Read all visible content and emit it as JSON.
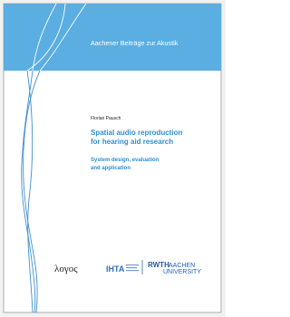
{
  "series_name": "Aachener Beiträge zur Akustik",
  "author": "Florian Pausch",
  "title_lines": [
    "Spatial audio reproduction",
    "for hearing aid research"
  ],
  "subtitle_lines": [
    "System design, evaluation",
    "and application"
  ],
  "publisher": "λογος",
  "logos": {
    "ihta": "IHTA",
    "rwth": "RWTH",
    "rwth_sub": [
      "AACHEN",
      "UNIVERSITY"
    ]
  }
}
